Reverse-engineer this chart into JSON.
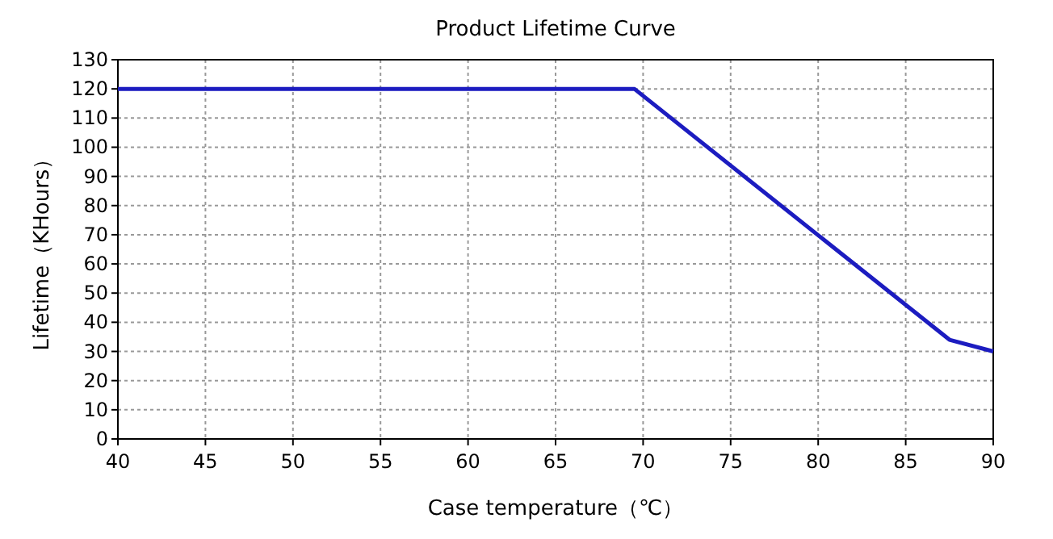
{
  "chart_data": {
    "type": "line",
    "title": "Product Lifetime Curve",
    "xlabel": "Case temperature（℃）",
    "ylabel": "Lifetime（KHours）",
    "x": [
      40,
      69.5,
      87.5,
      90
    ],
    "series": [
      {
        "color": "#1c1cc0",
        "values": [
          120,
          120,
          34,
          30
        ]
      }
    ],
    "xlim": [
      40,
      90
    ],
    "xticks": [
      40,
      45,
      50,
      55,
      60,
      65,
      70,
      75,
      80,
      85,
      90
    ],
    "ylim": [
      0,
      130
    ],
    "yticks": [
      0,
      10,
      20,
      30,
      40,
      50,
      60,
      70,
      80,
      90,
      100,
      110,
      120,
      130
    ],
    "grid": true,
    "marker": "none",
    "line_style": "solid"
  }
}
